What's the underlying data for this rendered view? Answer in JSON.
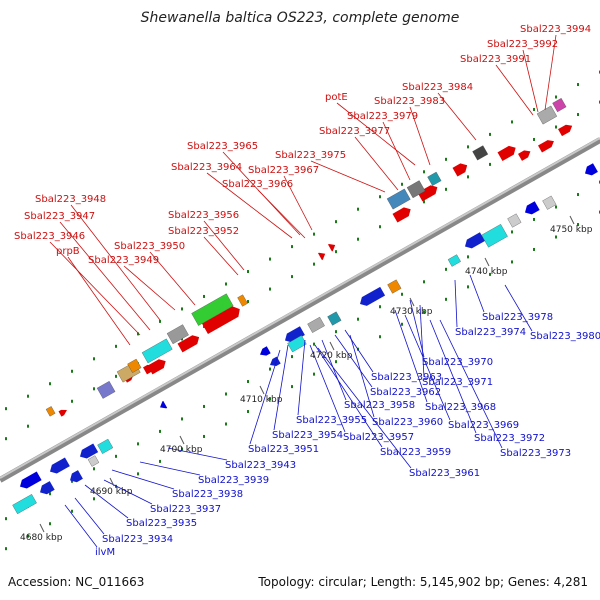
{
  "title": "Shewanella baltica OS223, complete genome",
  "footer": {
    "accession": "Accession: NC_011663",
    "topology": "Topology: circular; Length: 5,145,902 bp; Genes: 4,281"
  },
  "colors": {
    "label_top": "#cc1111",
    "label_bottom": "#1111cc",
    "backbone": "#999999"
  },
  "ticks": [
    "4680 kbp",
    "4690 kbp",
    "4700 kbp",
    "4710 kbp",
    "4720 kbp",
    "4730 kbp",
    "4740 kbp",
    "4750 kbp"
  ],
  "labels_top": [
    "Sbal223_3994",
    "Sbal223_3992",
    "Sbal223_3991",
    "Sbal223_3984",
    "potE",
    "Sbal223_3983",
    "Sbal223_3979",
    "Sbal223_3977",
    "Sbal223_3975",
    "Sbal223_3965",
    "Sbal223_3967",
    "Sbal223_3964",
    "Sbal223_3966",
    "Sbal223_3956",
    "Sbal223_3952",
    "Sbal223_3948",
    "Sbal223_3947",
    "Sbal223_3946",
    "prpB",
    "Sbal223_3950",
    "Sbal223_3949"
  ],
  "labels_bottom": [
    "Sbal223_3978",
    "Sbal223_3974",
    "Sbal223_3980",
    "Sbal223_3970",
    "Sbal223_3963",
    "Sbal223_3971",
    "Sbal223_3962",
    "Sbal223_3958",
    "Sbal223_3968",
    "Sbal223_3955",
    "Sbal223_3960",
    "Sbal223_3969",
    "Sbal223_3954",
    "Sbal223_3957",
    "Sbal223_3972",
    "Sbal223_3951",
    "Sbal223_3959",
    "Sbal223_3973",
    "Sbal223_3943",
    "Sbal223_3961",
    "Sbal223_3939",
    "Sbal223_3938",
    "Sbal223_3937",
    "Sbal223_3935",
    "Sbal223_3934",
    "ilvM"
  ]
}
